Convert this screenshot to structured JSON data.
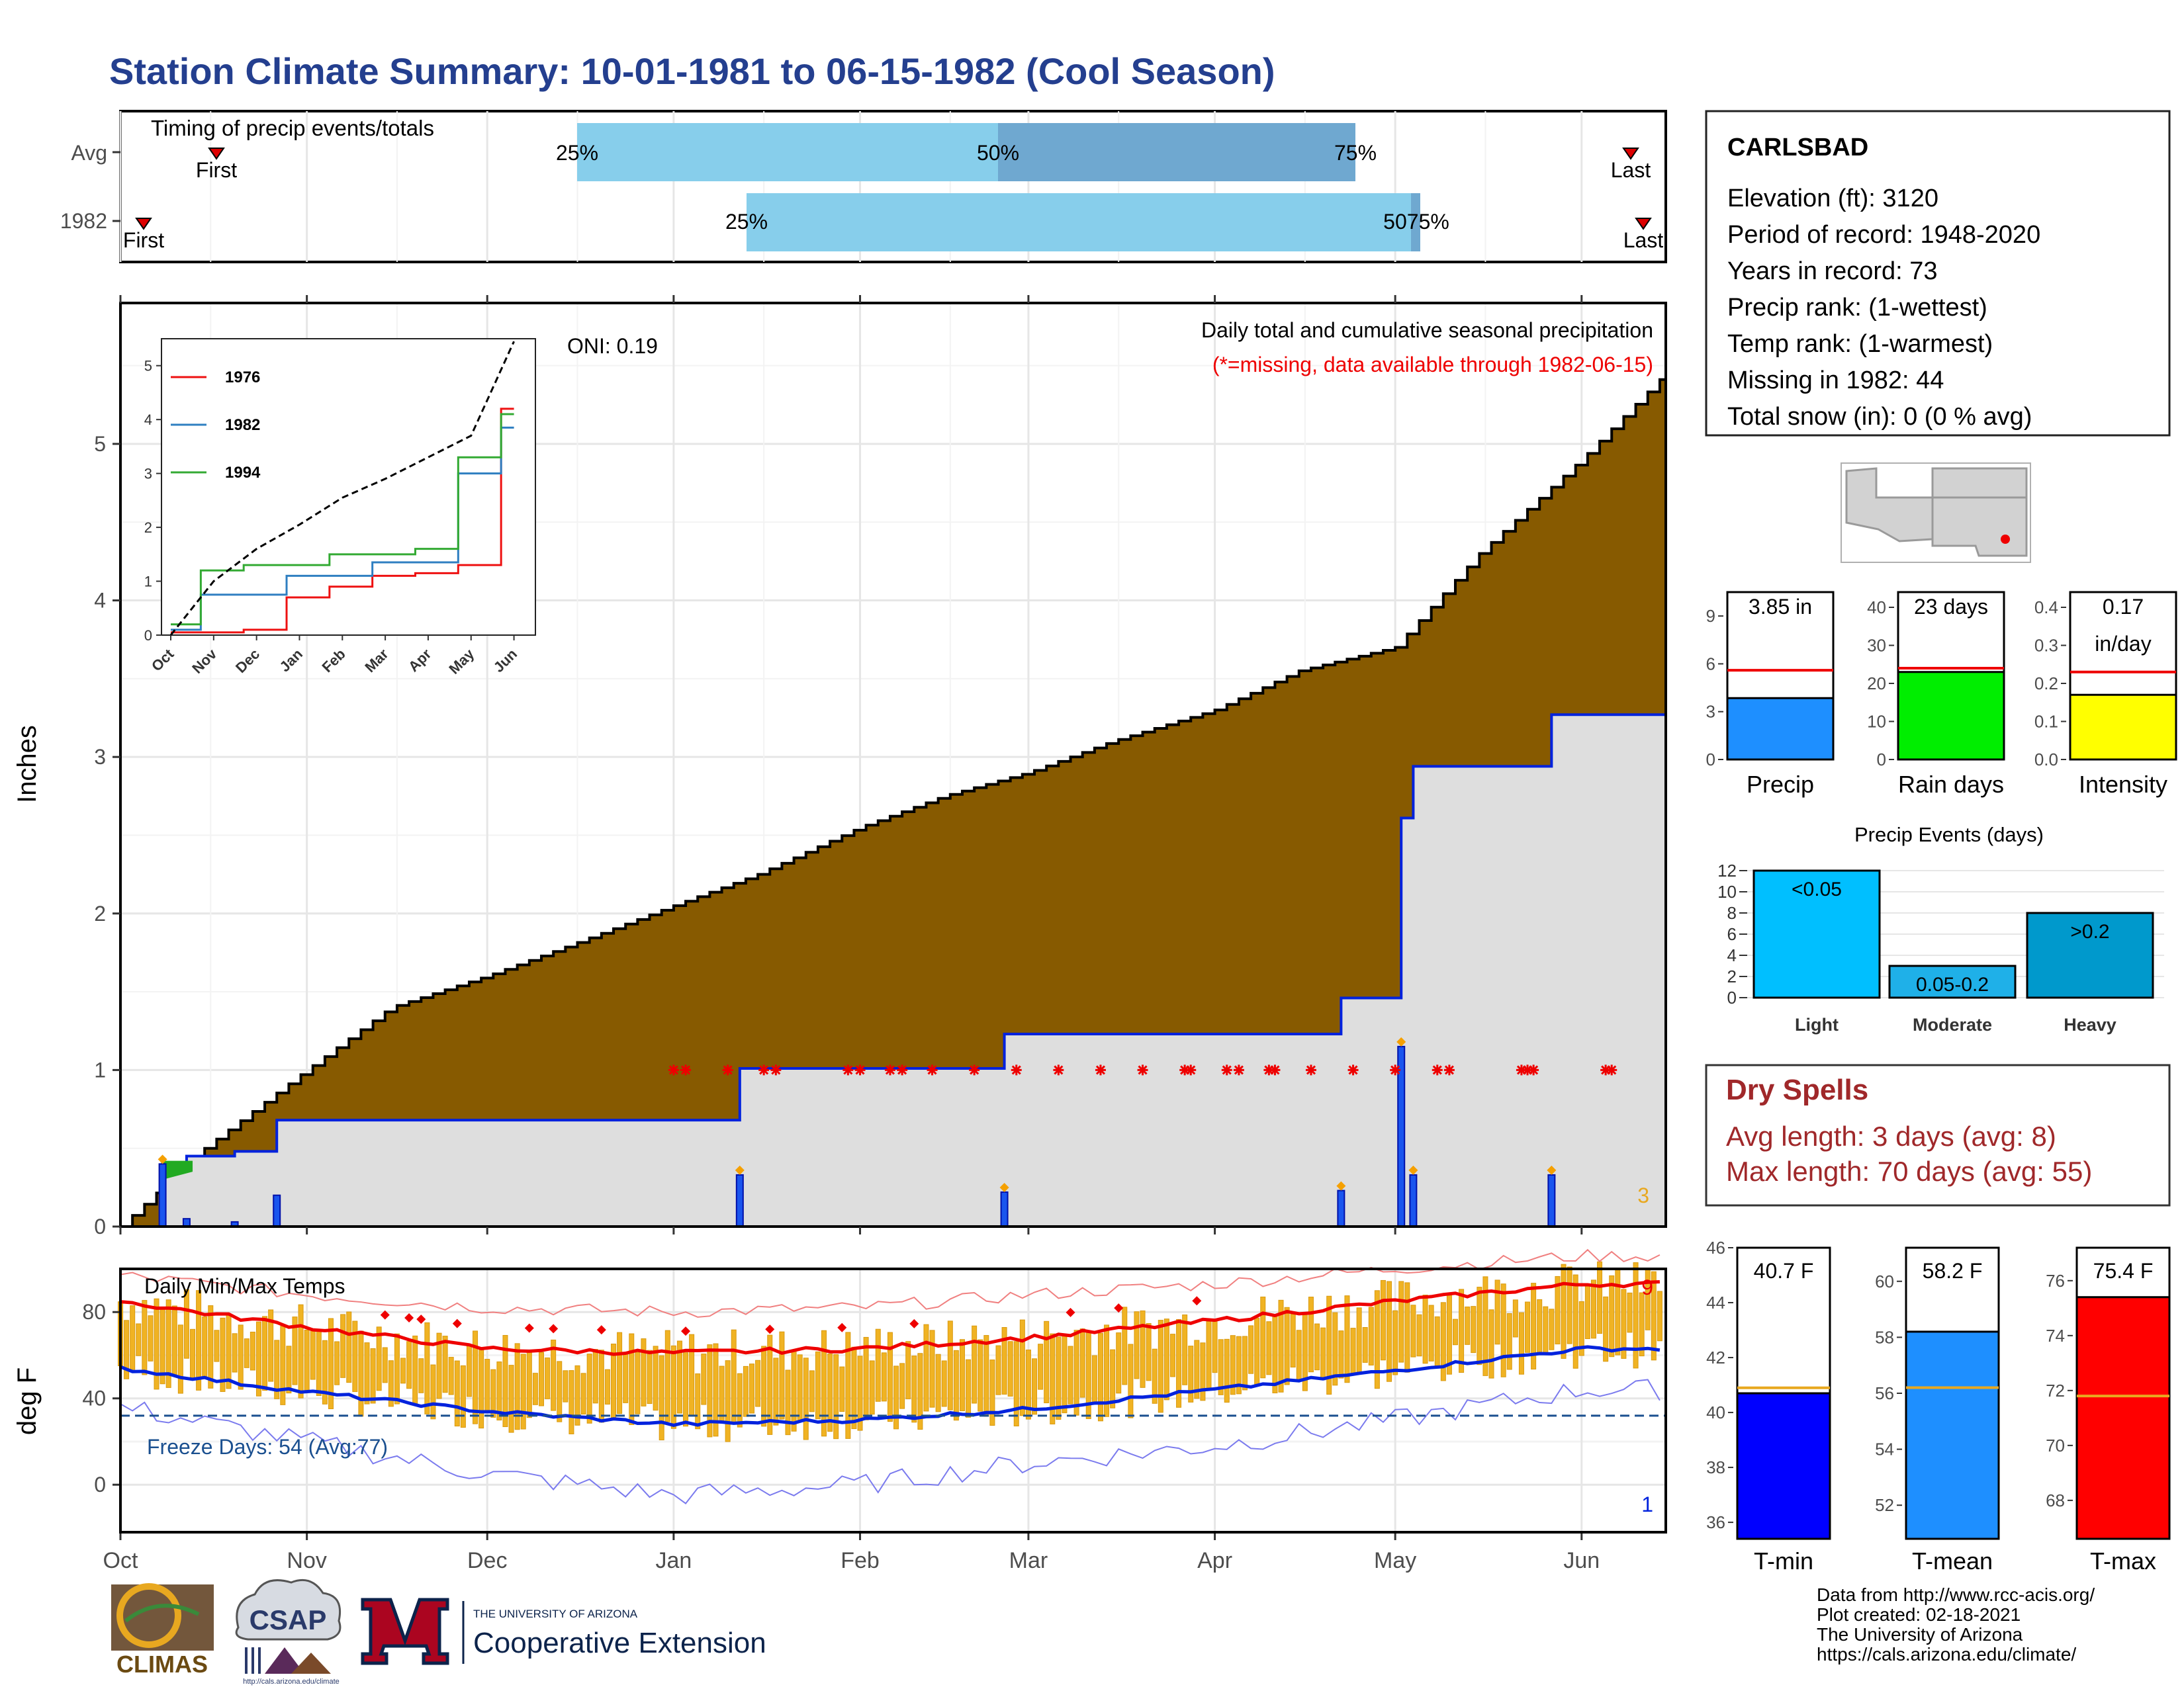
{
  "title": "Station Climate Summary: 10-01-1981 to 06-15-1982 (Cool Season)",
  "timing": {
    "label": "Timing of precip events/totals",
    "rows": [
      "Avg",
      "1982"
    ],
    "avg_pct": {
      "p25": "25%",
      "p50": "50%",
      "p75": "75%"
    },
    "y1982_pct": {
      "p25": "25%",
      "p50": "50%",
      "p75": "75%"
    },
    "first_label": "First",
    "last_label": "Last",
    "overlap_label": "5075%"
  },
  "precip": {
    "ylabel": "Inches",
    "note1": "Daily total and cumulative seasonal precipitation",
    "note2": "(*=missing, data available through 1982-06-15)",
    "oni": "ONI: 0.19",
    "count_label": "3",
    "yticks": [
      "0",
      "1",
      "2",
      "3",
      "4",
      "5"
    ],
    "months": [
      "Oct",
      "Nov",
      "Dec",
      "Jan",
      "Feb",
      "Mar",
      "Apr",
      "May",
      "Jun"
    ]
  },
  "inset": {
    "yticks": [
      "0",
      "1",
      "2",
      "3",
      "4",
      "5"
    ],
    "months": [
      "Oct",
      "Nov",
      "Dec",
      "Jan",
      "Feb",
      "Mar",
      "Apr",
      "May",
      "Jun"
    ],
    "legend": [
      "1976",
      "1982",
      "1994"
    ]
  },
  "temps": {
    "ylabel": "deg F",
    "label": "Daily Min/Max Temps",
    "freeze": "Freeze Days: 54 (Avg:77)",
    "max_count": "9",
    "min_count": "1",
    "yticks": [
      "0",
      "40",
      "80"
    ],
    "months": [
      "Oct",
      "Nov",
      "Dec",
      "Jan",
      "Feb",
      "Mar",
      "Apr",
      "May",
      "Jun"
    ]
  },
  "station": {
    "name": "CARLSBAD",
    "lines": [
      "Elevation (ft): 3120",
      "Period of record: 1948-2020",
      "Years in record: 73",
      "Precip rank:  (1-wettest)",
      "Temp rank:  (1-warmest)",
      "Missing in 1982: 44",
      "Total snow (in): 0 (0 % avg)"
    ]
  },
  "mini_bars": [
    {
      "name": "Precip",
      "value": "3.85 in",
      "ticks": [
        "0",
        "3",
        "6",
        "9"
      ]
    },
    {
      "name": "Rain days",
      "value": "23 days",
      "ticks": [
        "0",
        "10",
        "20",
        "30",
        "40"
      ]
    },
    {
      "name": "Intensity",
      "value": "0.17",
      "value2": "in/day",
      "ticks": [
        "0.0",
        "0.1",
        "0.2",
        "0.3",
        "0.4"
      ]
    }
  ],
  "events": {
    "title": "Precip Events (days)",
    "cats": [
      "Light",
      "Moderate",
      "Heavy"
    ],
    "labels": [
      "<0.05",
      "0.05-0.2",
      ">0.2"
    ],
    "ticks": [
      "0",
      "2",
      "4",
      "6",
      "8",
      "10",
      "12"
    ]
  },
  "dry": {
    "title": "Dry Spells",
    "avg": "Avg length: 3 days (avg: 8)",
    "max": "Max length: 70 days (avg: 55)"
  },
  "temp_bars": [
    {
      "name": "T-min",
      "value": "40.7 F",
      "ticks": [
        "36",
        "38",
        "40",
        "42",
        "44",
        "46"
      ]
    },
    {
      "name": "T-mean",
      "value": "58.2 F",
      "ticks": [
        "52",
        "54",
        "56",
        "58",
        "60"
      ]
    },
    {
      "name": "T-max",
      "value": "75.4 F",
      "ticks": [
        "68",
        "70",
        "72",
        "74",
        "76"
      ]
    }
  ],
  "footer": {
    "lines": [
      "Data from http://www.rcc-acis.org/",
      "Plot created: 02-18-2021",
      "The University of Arizona",
      "https://cals.arizona.edu/climate/"
    ],
    "climas": "CLIMAS",
    "csap": "CSAP",
    "csap_url": "http://cals.arizona.edu/climate",
    "ua_small": "THE UNIVERSITY OF ARIZONA",
    "ua_big": "Cooperative Extension"
  },
  "colors": {
    "title": "#243f8f",
    "brown": "#875a00",
    "gray": "#dedede",
    "blue": "#0022dd",
    "light_blue": "#87ceeb",
    "mid_blue": "#6fa8d0",
    "red": "#ee0000",
    "orange": "#e8a820",
    "dry_red": "#a0282a"
  },
  "chart_data": [
    {
      "type": "area",
      "title": "Daily total and cumulative seasonal precipitation",
      "xlabel": "",
      "ylabel": "Inches",
      "ylim": [
        0,
        5.9
      ],
      "x": [
        "1981-10-01",
        "1981-10-15",
        "1981-11-01",
        "1981-11-15",
        "1981-12-01",
        "1981-12-15",
        "1982-01-01",
        "1982-01-15",
        "1982-02-01",
        "1982-02-15",
        "1982-03-01",
        "1982-03-15",
        "1982-04-01",
        "1982-04-15",
        "1982-05-01",
        "1982-05-15",
        "1982-06-01",
        "1982-06-15"
      ],
      "series": [
        {
          "name": "Average cumulative",
          "values": [
            0.0,
            0.5,
            1.0,
            1.4,
            1.6,
            1.8,
            2.05,
            2.25,
            2.55,
            2.75,
            2.9,
            3.1,
            3.3,
            3.55,
            3.7,
            4.3,
            4.9,
            5.45
          ]
        },
        {
          "name": "1982 cumulative",
          "values": [
            0.0,
            0.4,
            0.75,
            0.75,
            0.75,
            0.75,
            0.75,
            1.1,
            1.1,
            1.1,
            1.35,
            1.35,
            1.35,
            1.35,
            3.0,
            3.3,
            3.85,
            3.85
          ]
        }
      ],
      "daily_events": [
        {
          "date": "1981-10-08",
          "value": 0.4
        },
        {
          "date": "1981-10-12",
          "value": 0.05
        },
        {
          "date": "1981-10-20",
          "value": 0.03
        },
        {
          "date": "1981-10-27",
          "value": 0.2
        },
        {
          "date": "1982-01-12",
          "value": 0.33
        },
        {
          "date": "1982-02-25",
          "value": 0.22
        },
        {
          "date": "1982-04-22",
          "value": 0.23
        },
        {
          "date": "1982-05-02",
          "value": 1.15
        },
        {
          "date": "1982-05-04",
          "value": 0.33
        },
        {
          "date": "1982-05-27",
          "value": 0.33
        }
      ],
      "oni": 0.19
    },
    {
      "type": "line",
      "title": "",
      "xlabel": "",
      "ylabel": "",
      "ylim": [
        0,
        5.5
      ],
      "categories": [
        "Oct",
        "Nov",
        "Dec",
        "Jan",
        "Feb",
        "Mar",
        "Apr",
        "May",
        "Jun"
      ],
      "series": [
        {
          "name": "1976",
          "values": [
            0.05,
            0.05,
            0.1,
            0.7,
            0.9,
            1.1,
            1.15,
            1.3,
            4.2
          ]
        },
        {
          "name": "1982",
          "values": [
            0.1,
            0.75,
            0.75,
            1.1,
            1.1,
            1.35,
            1.35,
            3.0,
            3.85
          ]
        },
        {
          "name": "1994",
          "values": [
            0.2,
            1.2,
            1.3,
            1.3,
            1.5,
            1.5,
            1.6,
            3.3,
            4.1
          ]
        },
        {
          "name": "Average",
          "values": [
            0.0,
            1.0,
            1.6,
            2.05,
            2.55,
            2.9,
            3.3,
            3.7,
            5.45
          ]
        }
      ]
    },
    {
      "type": "line",
      "title": "Daily Min/Max Temps",
      "xlabel": "",
      "ylabel": "deg F",
      "ylim": [
        -22,
        100
      ],
      "categories": [
        "Oct",
        "Nov",
        "Dec",
        "Jan",
        "Feb",
        "Mar",
        "Apr",
        "May",
        "Jun"
      ],
      "series": [
        {
          "name": "Avg max",
          "values": [
            85,
            73,
            63,
            61,
            63,
            68,
            76,
            85,
            93
          ]
        },
        {
          "name": "Avg min",
          "values": [
            54,
            43,
            34,
            28,
            30,
            35,
            44,
            53,
            63
          ]
        },
        {
          "name": "Record max",
          "values": [
            97,
            88,
            82,
            80,
            82,
            88,
            93,
            100,
            106
          ]
        },
        {
          "name": "Record min",
          "values": [
            36,
            20,
            5,
            -5,
            0,
            10,
            18,
            30,
            44
          ]
        }
      ],
      "freeze_line": 32
    },
    {
      "type": "bar",
      "title": "",
      "categories": [
        "Precip",
        "Rain days",
        "Intensity"
      ],
      "values": [
        3.85,
        23,
        0.17
      ],
      "averages": [
        5.6,
        24,
        0.23
      ]
    },
    {
      "type": "bar",
      "title": "Precip Events (days)",
      "categories": [
        "Light",
        "Moderate",
        "Heavy"
      ],
      "values": [
        12,
        3,
        8
      ],
      "ylim": [
        0,
        12.5
      ]
    },
    {
      "type": "bar",
      "title": "",
      "categories": [
        "T-min",
        "T-mean",
        "T-max"
      ],
      "values": [
        40.7,
        58.2,
        75.4
      ],
      "averages": [
        40.9,
        56.2,
        71.8
      ]
    }
  ]
}
